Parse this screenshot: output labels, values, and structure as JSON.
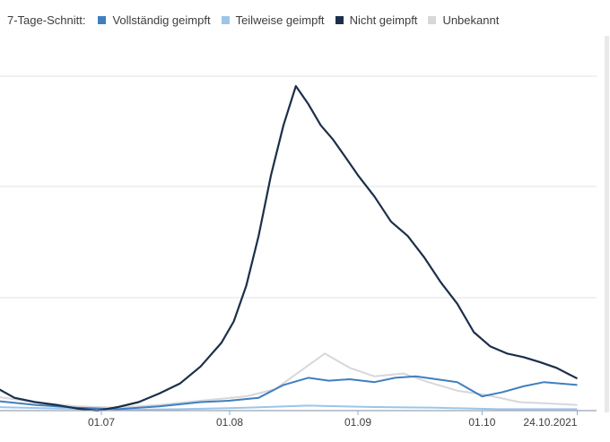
{
  "legend": {
    "title": "7-Tage-Schnitt:",
    "items": [
      {
        "label": "Vollständig geimpft",
        "color": "#3f7fbf"
      },
      {
        "label": "Teilweise geimpft",
        "color": "#9cc5ea"
      },
      {
        "label": "Nicht geimpft",
        "color": "#1c2f4a"
      },
      {
        "label": "Unbekannt",
        "color": "#d7d7dc"
      }
    ]
  },
  "chart_data": {
    "type": "line",
    "title": "",
    "xlabel": "",
    "ylabel": "",
    "x_ticks": [
      "01.07",
      "01.08",
      "01.09",
      "01.10",
      "24.10.2021"
    ],
    "grid": true,
    "legend_position": "top",
    "series": [
      {
        "name": "Nicht geimpft",
        "color": "#1c2f4a",
        "points": [
          [
            "2021-06-05",
            34
          ],
          [
            "2021-06-10",
            18
          ],
          [
            "2021-06-15",
            12
          ],
          [
            "2021-06-20",
            8
          ],
          [
            "2021-06-25",
            3
          ],
          [
            "2021-06-30",
            0
          ],
          [
            "2021-07-05",
            5
          ],
          [
            "2021-07-10",
            12
          ],
          [
            "2021-07-15",
            24
          ],
          [
            "2021-07-20",
            38
          ],
          [
            "2021-07-25",
            62
          ],
          [
            "2021-07-30",
            95
          ],
          [
            "2021-08-02",
            125
          ],
          [
            "2021-08-05",
            175
          ],
          [
            "2021-08-08",
            245
          ],
          [
            "2021-08-11",
            330
          ],
          [
            "2021-08-14",
            400
          ],
          [
            "2021-08-17",
            455
          ],
          [
            "2021-08-20",
            430
          ],
          [
            "2021-08-23",
            400
          ],
          [
            "2021-08-26",
            380
          ],
          [
            "2021-08-29",
            355
          ],
          [
            "2021-09-01",
            330
          ],
          [
            "2021-09-05",
            300
          ],
          [
            "2021-09-09",
            265
          ],
          [
            "2021-09-13",
            245
          ],
          [
            "2021-09-17",
            215
          ],
          [
            "2021-09-21",
            180
          ],
          [
            "2021-09-25",
            150
          ],
          [
            "2021-09-29",
            110
          ],
          [
            "2021-10-03",
            90
          ],
          [
            "2021-10-07",
            80
          ],
          [
            "2021-10-11",
            75
          ],
          [
            "2021-10-15",
            68
          ],
          [
            "2021-10-19",
            60
          ],
          [
            "2021-10-24",
            45
          ]
        ]
      },
      {
        "name": "Vollständig geimpft",
        "color": "#3f7fbf",
        "points": [
          [
            "2021-06-05",
            14
          ],
          [
            "2021-06-15",
            8
          ],
          [
            "2021-06-25",
            4
          ],
          [
            "2021-07-05",
            2
          ],
          [
            "2021-07-15",
            6
          ],
          [
            "2021-07-25",
            12
          ],
          [
            "2021-08-01",
            14
          ],
          [
            "2021-08-08",
            18
          ],
          [
            "2021-08-14",
            36
          ],
          [
            "2021-08-20",
            46
          ],
          [
            "2021-08-25",
            42
          ],
          [
            "2021-08-30",
            44
          ],
          [
            "2021-09-05",
            40
          ],
          [
            "2021-09-10",
            46
          ],
          [
            "2021-09-15",
            48
          ],
          [
            "2021-09-20",
            44
          ],
          [
            "2021-09-25",
            40
          ],
          [
            "2021-10-01",
            20
          ],
          [
            "2021-10-06",
            26
          ],
          [
            "2021-10-11",
            34
          ],
          [
            "2021-10-16",
            40
          ],
          [
            "2021-10-24",
            36
          ]
        ]
      },
      {
        "name": "Teilweise geimpft",
        "color": "#9cc5ea",
        "points": [
          [
            "2021-06-05",
            5
          ],
          [
            "2021-06-20",
            3
          ],
          [
            "2021-07-05",
            1
          ],
          [
            "2021-07-20",
            2
          ],
          [
            "2021-08-05",
            4
          ],
          [
            "2021-08-20",
            7
          ],
          [
            "2021-09-05",
            5
          ],
          [
            "2021-09-20",
            4
          ],
          [
            "2021-10-05",
            2
          ],
          [
            "2021-10-24",
            2
          ]
        ]
      },
      {
        "name": "Unbekannt",
        "color": "#d7d7dc",
        "points": [
          [
            "2021-06-05",
            20
          ],
          [
            "2021-06-15",
            12
          ],
          [
            "2021-06-25",
            6
          ],
          [
            "2021-07-05",
            4
          ],
          [
            "2021-07-15",
            8
          ],
          [
            "2021-07-25",
            14
          ],
          [
            "2021-08-05",
            20
          ],
          [
            "2021-08-12",
            30
          ],
          [
            "2021-08-18",
            55
          ],
          [
            "2021-08-24",
            80
          ],
          [
            "2021-08-30",
            60
          ],
          [
            "2021-09-05",
            48
          ],
          [
            "2021-09-12",
            52
          ],
          [
            "2021-09-18",
            40
          ],
          [
            "2021-09-25",
            28
          ],
          [
            "2021-10-02",
            22
          ],
          [
            "2021-10-10",
            12
          ],
          [
            "2021-10-24",
            8
          ]
        ]
      }
    ]
  }
}
